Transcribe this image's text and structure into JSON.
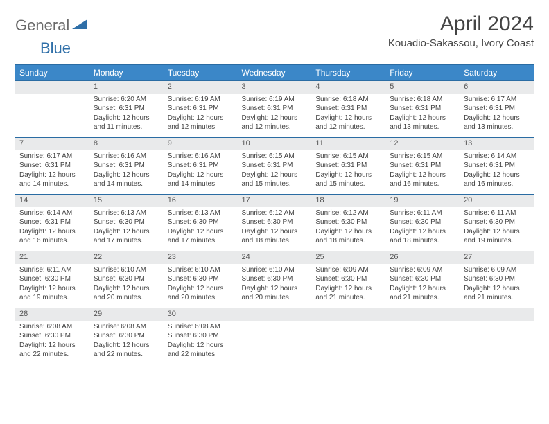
{
  "logo": {
    "part1": "General",
    "part2": "Blue"
  },
  "title": "April 2024",
  "location": "Kouadio-Sakassou, Ivory Coast",
  "colors": {
    "header_bg": "#3b87c8",
    "header_border": "#2a6ca3",
    "daynum_bg": "#e9eaeb",
    "logo_gray": "#6a6a6a",
    "logo_blue": "#2f6fa8"
  },
  "weekdays": [
    "Sunday",
    "Monday",
    "Tuesday",
    "Wednesday",
    "Thursday",
    "Friday",
    "Saturday"
  ],
  "weeks": [
    {
      "days": [
        null,
        {
          "n": "1",
          "sunrise": "6:20 AM",
          "sunset": "6:31 PM",
          "daylight": "12 hours and 11 minutes."
        },
        {
          "n": "2",
          "sunrise": "6:19 AM",
          "sunset": "6:31 PM",
          "daylight": "12 hours and 12 minutes."
        },
        {
          "n": "3",
          "sunrise": "6:19 AM",
          "sunset": "6:31 PM",
          "daylight": "12 hours and 12 minutes."
        },
        {
          "n": "4",
          "sunrise": "6:18 AM",
          "sunset": "6:31 PM",
          "daylight": "12 hours and 12 minutes."
        },
        {
          "n": "5",
          "sunrise": "6:18 AM",
          "sunset": "6:31 PM",
          "daylight": "12 hours and 13 minutes."
        },
        {
          "n": "6",
          "sunrise": "6:17 AM",
          "sunset": "6:31 PM",
          "daylight": "12 hours and 13 minutes."
        }
      ]
    },
    {
      "days": [
        {
          "n": "7",
          "sunrise": "6:17 AM",
          "sunset": "6:31 PM",
          "daylight": "12 hours and 14 minutes."
        },
        {
          "n": "8",
          "sunrise": "6:16 AM",
          "sunset": "6:31 PM",
          "daylight": "12 hours and 14 minutes."
        },
        {
          "n": "9",
          "sunrise": "6:16 AM",
          "sunset": "6:31 PM",
          "daylight": "12 hours and 14 minutes."
        },
        {
          "n": "10",
          "sunrise": "6:15 AM",
          "sunset": "6:31 PM",
          "daylight": "12 hours and 15 minutes."
        },
        {
          "n": "11",
          "sunrise": "6:15 AM",
          "sunset": "6:31 PM",
          "daylight": "12 hours and 15 minutes."
        },
        {
          "n": "12",
          "sunrise": "6:15 AM",
          "sunset": "6:31 PM",
          "daylight": "12 hours and 16 minutes."
        },
        {
          "n": "13",
          "sunrise": "6:14 AM",
          "sunset": "6:31 PM",
          "daylight": "12 hours and 16 minutes."
        }
      ]
    },
    {
      "days": [
        {
          "n": "14",
          "sunrise": "6:14 AM",
          "sunset": "6:31 PM",
          "daylight": "12 hours and 16 minutes."
        },
        {
          "n": "15",
          "sunrise": "6:13 AM",
          "sunset": "6:30 PM",
          "daylight": "12 hours and 17 minutes."
        },
        {
          "n": "16",
          "sunrise": "6:13 AM",
          "sunset": "6:30 PM",
          "daylight": "12 hours and 17 minutes."
        },
        {
          "n": "17",
          "sunrise": "6:12 AM",
          "sunset": "6:30 PM",
          "daylight": "12 hours and 18 minutes."
        },
        {
          "n": "18",
          "sunrise": "6:12 AM",
          "sunset": "6:30 PM",
          "daylight": "12 hours and 18 minutes."
        },
        {
          "n": "19",
          "sunrise": "6:11 AM",
          "sunset": "6:30 PM",
          "daylight": "12 hours and 18 minutes."
        },
        {
          "n": "20",
          "sunrise": "6:11 AM",
          "sunset": "6:30 PM",
          "daylight": "12 hours and 19 minutes."
        }
      ]
    },
    {
      "days": [
        {
          "n": "21",
          "sunrise": "6:11 AM",
          "sunset": "6:30 PM",
          "daylight": "12 hours and 19 minutes."
        },
        {
          "n": "22",
          "sunrise": "6:10 AM",
          "sunset": "6:30 PM",
          "daylight": "12 hours and 20 minutes."
        },
        {
          "n": "23",
          "sunrise": "6:10 AM",
          "sunset": "6:30 PM",
          "daylight": "12 hours and 20 minutes."
        },
        {
          "n": "24",
          "sunrise": "6:10 AM",
          "sunset": "6:30 PM",
          "daylight": "12 hours and 20 minutes."
        },
        {
          "n": "25",
          "sunrise": "6:09 AM",
          "sunset": "6:30 PM",
          "daylight": "12 hours and 21 minutes."
        },
        {
          "n": "26",
          "sunrise": "6:09 AM",
          "sunset": "6:30 PM",
          "daylight": "12 hours and 21 minutes."
        },
        {
          "n": "27",
          "sunrise": "6:09 AM",
          "sunset": "6:30 PM",
          "daylight": "12 hours and 21 minutes."
        }
      ]
    },
    {
      "days": [
        {
          "n": "28",
          "sunrise": "6:08 AM",
          "sunset": "6:30 PM",
          "daylight": "12 hours and 22 minutes."
        },
        {
          "n": "29",
          "sunrise": "6:08 AM",
          "sunset": "6:30 PM",
          "daylight": "12 hours and 22 minutes."
        },
        {
          "n": "30",
          "sunrise": "6:08 AM",
          "sunset": "6:30 PM",
          "daylight": "12 hours and 22 minutes."
        },
        null,
        null,
        null,
        null
      ]
    }
  ],
  "labels": {
    "sunrise": "Sunrise:",
    "sunset": "Sunset:",
    "daylight": "Daylight:"
  }
}
